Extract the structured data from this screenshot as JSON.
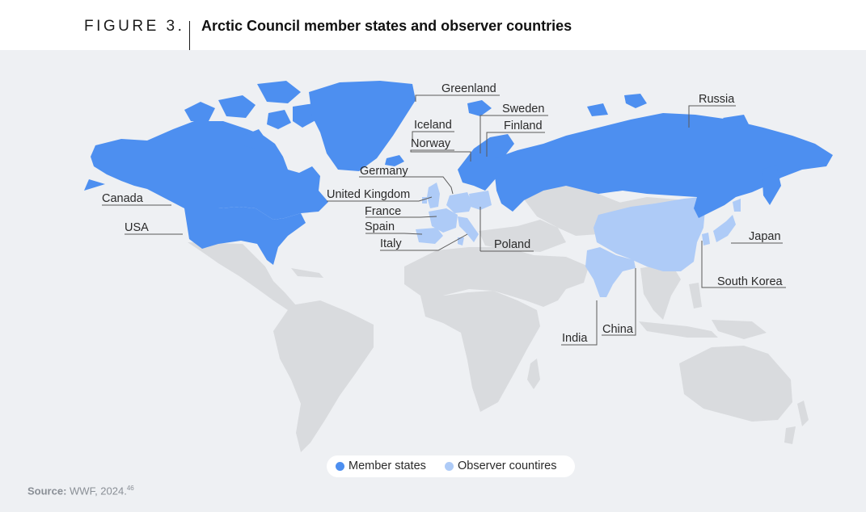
{
  "header": {
    "figure_number": "FIGURE 3.",
    "title": "Arctic Council member states and observer countries"
  },
  "colors": {
    "member": "#4d8ff0",
    "observer": "#aecbf7",
    "land": "#d9dbde",
    "background": "#eef0f3",
    "leader": "#5a5a5a"
  },
  "labels": {
    "greenland": "Greenland",
    "sweden": "Sweden",
    "russia": "Russia",
    "iceland": "Iceland",
    "finland": "Finland",
    "norway": "Norway",
    "germany": "Germany",
    "canada": "Canada",
    "united_kingdom": "United Kingdom",
    "france": "France",
    "spain": "Spain",
    "usa": "USA",
    "italy": "Italy",
    "poland": "Poland",
    "japan": "Japan",
    "south_korea": "South Korea",
    "china": "China",
    "india": "India"
  },
  "member_states": [
    "Canada",
    "USA",
    "Greenland",
    "Iceland",
    "Norway",
    "Sweden",
    "Finland",
    "Russia"
  ],
  "observer_countries": [
    "United Kingdom",
    "France",
    "Spain",
    "Italy",
    "Germany",
    "Poland",
    "China",
    "India",
    "Japan",
    "South Korea"
  ],
  "legend": {
    "member_label": "Member states",
    "observer_label": "Observer countires"
  },
  "source": {
    "label": "Source:",
    "text": "WWF, 2024.",
    "note": "46"
  }
}
